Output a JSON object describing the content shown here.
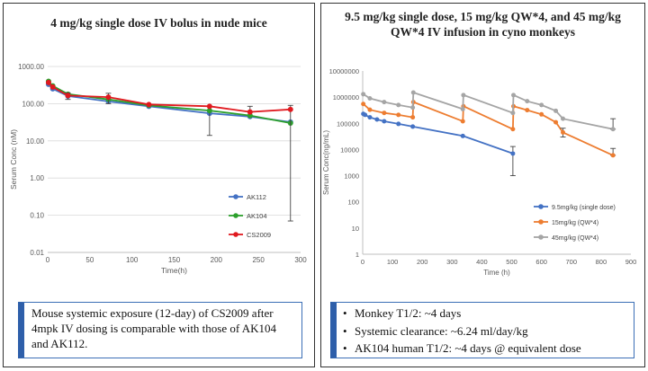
{
  "left": {
    "title": "4 mg/kg single dose IV bolus in nude mice",
    "caption": "Mouse systemic exposure (12-day) of CS2009 after 4mpk IV dosing is comparable with those of AK104 and AK112."
  },
  "right": {
    "title_line1": "9.5 mg/kg single dose, 15 mg/kg QW*4, and 45 mg/kg",
    "title_line2": "QW*4 IV infusion in cyno monkeys",
    "bullets": [
      "Monkey T1/2: ~4 days",
      "Systemic clearance: ~6.24 ml/day/kg",
      "AK104 human T1/2: ~4 days @ equivalent dose"
    ]
  },
  "chart_data": [
    {
      "type": "line",
      "title": "4 mg/kg single dose IV bolus in nude mice",
      "xlabel": "Time(h)",
      "ylabel": "Serum Conc (nM)",
      "xlim": [
        0,
        300
      ],
      "xticks": [
        "0",
        "50",
        "100",
        "150",
        "200",
        "250",
        "300"
      ],
      "ylim": [
        0.01,
        1000
      ],
      "yscale": "log",
      "yticks": [
        "0.01",
        "0.10",
        "1.00",
        "10.00",
        "100.00",
        "1000.00"
      ],
      "legend_position": "right-middle",
      "series": [
        {
          "name": "AK112",
          "color": "#4472c4",
          "x": [
            1,
            6,
            24,
            72,
            120,
            192,
            240,
            288
          ],
          "y": [
            330,
            250,
            160,
            115,
            85,
            55,
            45,
            32
          ],
          "err_lo": [
            0,
            0,
            0,
            0,
            0,
            0,
            0,
            0
          ],
          "err_hi": [
            0,
            0,
            0,
            0,
            0,
            0,
            0,
            0
          ]
        },
        {
          "name": "AK104",
          "color": "#2ca02c",
          "x": [
            1,
            6,
            24,
            72,
            120,
            192,
            240,
            288
          ],
          "y": [
            400,
            300,
            180,
            130,
            90,
            65,
            48,
            30
          ],
          "err_lo": [
            0,
            0,
            0,
            0,
            0,
            51,
            0,
            0
          ],
          "err_hi": [
            0,
            0,
            0,
            0,
            0,
            0,
            0,
            0
          ]
        },
        {
          "name": "CS2009",
          "color": "#e0191f",
          "x": [
            1,
            6,
            24,
            72,
            120,
            192,
            240,
            288
          ],
          "y": [
            370,
            280,
            165,
            150,
            95,
            85,
            60,
            70
          ],
          "err_lo": [
            0,
            0,
            35,
            50,
            0,
            0,
            0,
            69.93
          ],
          "err_hi": [
            0,
            0,
            30,
            40,
            0,
            0,
            25,
            20
          ]
        }
      ]
    },
    {
      "type": "line",
      "title": "9.5 mg/kg single dose, 15 mg/kg QW*4, and 45 mg/kg QW*4 IV infusion in cyno monkeys",
      "xlabel": "Time (h)",
      "ylabel": "Serum Conc(ng/mL)",
      "xlim": [
        0,
        900
      ],
      "xticks": [
        "0",
        "100",
        "200",
        "300",
        "400",
        "500",
        "600",
        "700",
        "800",
        "900"
      ],
      "ylim": [
        1,
        10000000
      ],
      "yscale": "log",
      "yticks": [
        "1",
        "10",
        "100",
        "1000",
        "10000",
        "100000",
        "1000000",
        "10000000"
      ],
      "legend_position": "bottom-right",
      "series": [
        {
          "name": "9.5mg/kg (single dose)",
          "color": "#4472c4",
          "x": [
            2,
            8,
            24,
            48,
            72,
            120,
            168,
            336,
            504
          ],
          "y": [
            230000,
            210000,
            170000,
            140000,
            120000,
            95000,
            75000,
            33000,
            7000
          ],
          "err_lo": [
            0,
            0,
            0,
            0,
            0,
            0,
            0,
            0,
            6000
          ],
          "err_hi": [
            0,
            0,
            0,
            0,
            0,
            0,
            0,
            0,
            6000
          ]
        },
        {
          "name": "15mg/kg (QW*4)",
          "color": "#ed7d31",
          "x": [
            2,
            24,
            72,
            120,
            168,
            170,
            336,
            338,
            504,
            506,
            552,
            600,
            648,
            672,
            840
          ],
          "y": [
            550000,
            330000,
            250000,
            210000,
            170000,
            650000,
            120000,
            450000,
            60000,
            450000,
            320000,
            220000,
            110000,
            45000,
            6000
          ],
          "err_lo": [
            0,
            0,
            0,
            0,
            0,
            0,
            0,
            0,
            0,
            0,
            0,
            0,
            0,
            15000,
            0
          ],
          "err_hi": [
            0,
            0,
            0,
            0,
            0,
            0,
            0,
            0,
            0,
            0,
            0,
            0,
            0,
            20000,
            5000
          ]
        },
        {
          "name": "45mg/kg (QW*4)",
          "color": "#a5a5a5",
          "x": [
            2,
            24,
            72,
            120,
            168,
            170,
            336,
            338,
            504,
            506,
            552,
            600,
            648,
            672,
            840
          ],
          "y": [
            1300000,
            900000,
            650000,
            500000,
            400000,
            1500000,
            350000,
            1200000,
            250000,
            1200000,
            700000,
            500000,
            300000,
            150000,
            60000
          ],
          "err_lo": [
            0,
            0,
            0,
            0,
            0,
            0,
            0,
            0,
            0,
            0,
            0,
            0,
            0,
            0,
            0
          ],
          "err_hi": [
            0,
            0,
            0,
            0,
            0,
            0,
            0,
            0,
            0,
            0,
            0,
            0,
            0,
            0,
            90000
          ]
        }
      ]
    }
  ]
}
